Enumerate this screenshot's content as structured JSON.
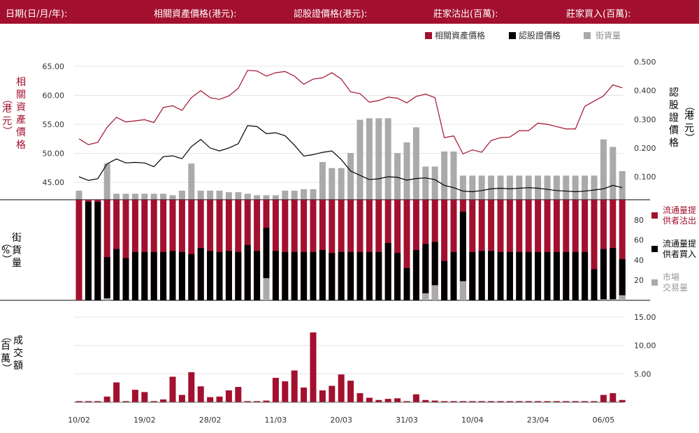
{
  "header": {
    "date_label": "日期(日/月/年):",
    "underlying_label": "相關資產價格(港元):",
    "warrant_label": "認股證價格(港元):",
    "sell_label": "莊家沽出(百萬):",
    "buy_label": "莊家買入(百萬):"
  },
  "colors": {
    "underlying": "#a3102f",
    "warrant": "#000000",
    "outstanding": "#aaaaaa"
  },
  "legend_top": {
    "underlying": "相關資產價格",
    "warrant": "認股證價格",
    "outstanding": "街貨量"
  },
  "left_axis_title": {
    "chars": [
      "相",
      "關",
      "資",
      "產",
      "價",
      "格"
    ],
    "unit_chars": [
      "港",
      "元"
    ]
  },
  "right_axis_title": {
    "chars": [
      "認",
      "股",
      "證",
      "價",
      "格"
    ],
    "unit_chars": [
      "港",
      "元"
    ]
  },
  "mid_axis_title": {
    "chars": [
      "街",
      "貨",
      "量"
    ],
    "unit": "%"
  },
  "bottom_axis_title": {
    "chars": [
      "成",
      "交",
      "額"
    ],
    "unit_chars": [
      "百",
      "萬"
    ]
  },
  "legend_mid": {
    "sell": [
      "流通量提",
      "供者沽出"
    ],
    "buy": [
      "流通量提",
      "供者買入"
    ],
    "market": [
      "市場",
      "交易量"
    ]
  },
  "x_tick_labels": [
    {
      "index": 0,
      "label": "10/02"
    },
    {
      "index": 7,
      "label": "19/02"
    },
    {
      "index": 14,
      "label": "28/02"
    },
    {
      "index": 21,
      "label": "11/03"
    },
    {
      "index": 28,
      "label": "20/03"
    },
    {
      "index": 35,
      "label": "31/03"
    },
    {
      "index": 42,
      "label": "10/04"
    },
    {
      "index": 49,
      "label": "23/04"
    },
    {
      "index": 56,
      "label": "06/05"
    }
  ],
  "chart_data": [
    {
      "type": "line",
      "y_left": {
        "ticks": [
          "45.00",
          "50.00",
          "55.00",
          "60.00",
          "65.00"
        ],
        "range": [
          42,
          68
        ]
      },
      "y_right": {
        "ticks": [
          "0.100",
          "0.200",
          "0.300",
          "0.400",
          "0.500"
        ],
        "range": [
          0.02,
          0.545
        ]
      },
      "series": [
        {
          "name": "相關資產價格",
          "axis": "left",
          "values": [
            52.5,
            51.5,
            51.9,
            54.5,
            56.2,
            55.4,
            55.6,
            55.8,
            55.3,
            57.9,
            58.2,
            57.4,
            59.6,
            60.8,
            59.6,
            59.3,
            59.9,
            61.2,
            64.3,
            64.2,
            63.3,
            63.9,
            64.1,
            63.3,
            61.9,
            62.8,
            63.0,
            63.9,
            62.8,
            60.6,
            60.3,
            58.8,
            59.1,
            59.7,
            59.5,
            58.7,
            59.8,
            60.2,
            59.6,
            52.7,
            53.0,
            49.9,
            50.6,
            50.2,
            52.2,
            52.7,
            52.8,
            53.9,
            53.9,
            55.2,
            55.0,
            54.6,
            54.2,
            54.2,
            58.1,
            59.0,
            59.9,
            61.8,
            61.3
          ]
        },
        {
          "name": "認股證價格",
          "axis": "right",
          "values": [
            0.1,
            0.087,
            0.093,
            0.145,
            0.162,
            0.148,
            0.15,
            0.148,
            0.135,
            0.17,
            0.173,
            0.163,
            0.205,
            0.23,
            0.2,
            0.19,
            0.2,
            0.215,
            0.278,
            0.275,
            0.25,
            0.253,
            0.243,
            0.21,
            0.172,
            0.177,
            0.185,
            0.19,
            0.16,
            0.12,
            0.105,
            0.09,
            0.093,
            0.1,
            0.098,
            0.088,
            0.094,
            0.096,
            0.09,
            0.07,
            0.062,
            0.05,
            0.048,
            0.052,
            0.058,
            0.06,
            0.058,
            0.06,
            0.062,
            0.06,
            0.056,
            0.052,
            0.05,
            0.048,
            0.05,
            0.054,
            0.058,
            0.07,
            0.062
          ]
        }
      ]
    },
    {
      "type": "bar",
      "name": "街貨量",
      "y_range": [
        0,
        100
      ],
      "values": [
        6,
        0,
        0,
        24,
        4,
        4,
        4,
        4,
        4,
        4,
        3,
        6,
        24,
        6,
        6,
        6,
        5,
        5,
        4,
        3,
        3,
        3,
        6,
        6,
        7,
        7,
        25,
        21,
        21,
        31,
        53,
        54,
        54,
        54,
        31,
        38,
        48,
        22,
        22,
        32,
        32,
        16,
        16,
        16,
        16,
        16,
        16,
        16,
        16,
        16,
        16,
        16,
        16,
        16,
        16,
        16,
        40,
        35,
        19
      ]
    },
    {
      "type": "bar",
      "name": "stacked",
      "y_ticks": [
        "20",
        "40",
        "60",
        "80"
      ],
      "y_range": [
        0,
        100
      ],
      "market": [
        0,
        0,
        0,
        2,
        0,
        0,
        0,
        0,
        0,
        0,
        0,
        0,
        0,
        0,
        0,
        0,
        0,
        0,
        0,
        0,
        22,
        0,
        0,
        0,
        0,
        0,
        0,
        0,
        0,
        0,
        0,
        0,
        0,
        0,
        0,
        0,
        0,
        7,
        15,
        0,
        0,
        19,
        0,
        0,
        0,
        0,
        0,
        0,
        0,
        0,
        0,
        0,
        0,
        0,
        0,
        0,
        1,
        1,
        5
      ],
      "buy": [
        0,
        98,
        98,
        41,
        51,
        42,
        48,
        48,
        48,
        48,
        49,
        48,
        46,
        52,
        49,
        48,
        49,
        48,
        55,
        49,
        50,
        49,
        48,
        48,
        48,
        48,
        50,
        47,
        48,
        48,
        48,
        48,
        48,
        57,
        47,
        32,
        50,
        49,
        43,
        39,
        48,
        69,
        48,
        49,
        49,
        48,
        48,
        48,
        48,
        48,
        48,
        48,
        48,
        48,
        48,
        31,
        50,
        51,
        36
      ]
    },
    {
      "type": "bar",
      "name": "成交額",
      "y_ticks": [
        "5.00",
        "10.00",
        "15.00"
      ],
      "y_range": [
        0,
        15.5
      ],
      "values": [
        0.2,
        0.2,
        0.2,
        1.0,
        3.5,
        0.2,
        2.2,
        1.8,
        0.2,
        0.5,
        4.5,
        1.3,
        5.3,
        2.8,
        0.9,
        1.0,
        2.1,
        2.7,
        0.2,
        0.2,
        0.3,
        4.3,
        3.7,
        5.6,
        2.6,
        12.3,
        2.1,
        2.9,
        4.9,
        3.8,
        1.6,
        0.8,
        0.4,
        0.6,
        0.7,
        0.2,
        1.4,
        0.4,
        0.3,
        0.2,
        0.2,
        0.2,
        0.2,
        0.2,
        0.2,
        0.2,
        0.2,
        0.2,
        0.2,
        0.2,
        0.2,
        0.2,
        0.2,
        0.2,
        0.2,
        0.2,
        1.3,
        1.6,
        0.4
      ]
    }
  ]
}
